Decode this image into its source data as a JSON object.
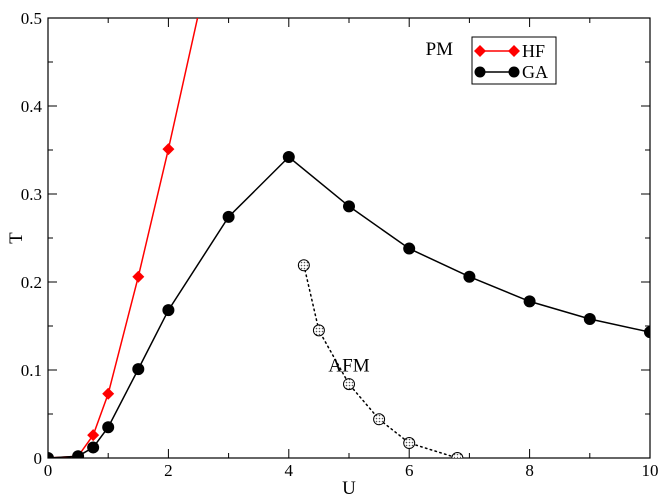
{
  "chart_data": {
    "type": "line",
    "xlabel": "U",
    "ylabel": "T",
    "xlim": [
      0,
      10
    ],
    "ylim": [
      0,
      0.5
    ],
    "xticks": [
      0,
      2,
      4,
      6,
      8,
      10
    ],
    "yticks": [
      0,
      0.1,
      0.2,
      0.3,
      0.4,
      0.5
    ],
    "xtick_labels": [
      "0",
      "2",
      "4",
      "6",
      "8",
      "10"
    ],
    "ytick_labels": [
      "0",
      "0.1",
      "0.2",
      "0.3",
      "0.4",
      "0.5"
    ],
    "legend_position": "top-right",
    "grid": false,
    "series": [
      {
        "name": "HF",
        "color": "#ff0000",
        "marker": "diamond",
        "line": "solid",
        "in_legend": true,
        "x": [
          0,
          0.5,
          0.75,
          1.0,
          1.5,
          2.0,
          2.5
        ],
        "y": [
          0,
          0.002,
          0.026,
          0.073,
          0.206,
          0.351,
          0.505
        ],
        "marker_mask": [
          true,
          true,
          true,
          true,
          true,
          true,
          false
        ]
      },
      {
        "name": "GA",
        "color": "#000000",
        "marker": "circle",
        "line": "solid",
        "in_legend": true,
        "x": [
          0,
          0.5,
          0.75,
          1.0,
          1.5,
          2.0,
          3.0,
          4.0,
          5.0,
          6.0,
          7.0,
          8.0,
          9.0,
          10.0
        ],
        "y": [
          0,
          0.002,
          0.012,
          0.035,
          0.101,
          0.168,
          0.274,
          0.342,
          0.286,
          0.238,
          0.206,
          0.178,
          0.158,
          0.143
        ]
      },
      {
        "name": "",
        "color": "#000000",
        "marker": "hatched-circle",
        "line": "dotted",
        "in_legend": false,
        "x": [
          4.25,
          4.5,
          5.0,
          5.5,
          6.0,
          6.8
        ],
        "y": [
          0.219,
          0.145,
          0.084,
          0.044,
          0.017,
          0.0
        ]
      }
    ],
    "annotations": [
      {
        "text": "PM",
        "x": 6.5,
        "y": 0.465
      },
      {
        "text": "AFM",
        "x": 5.0,
        "y": 0.105
      }
    ]
  }
}
